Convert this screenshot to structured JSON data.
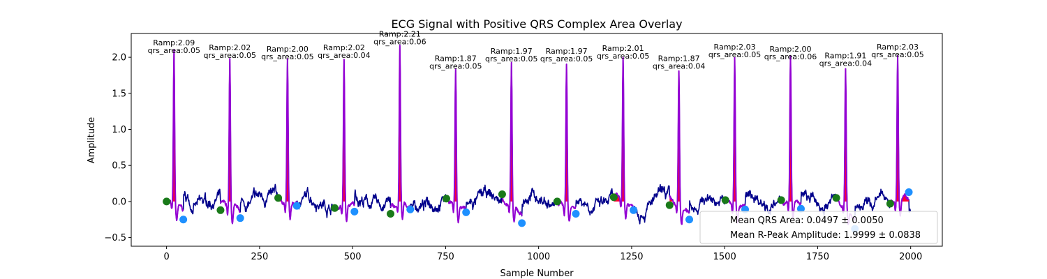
{
  "chart_data": {
    "type": "line",
    "title": "ECG Signal with Positive QRS Complex Area Overlay",
    "xlabel": "Sample Number",
    "ylabel": "Amplitude",
    "xlim": [
      -95,
      2085
    ],
    "ylim": [
      -0.62,
      2.33
    ],
    "grid": false,
    "legend_position": "lower-right",
    "x_ticks": [
      0,
      250,
      500,
      750,
      1000,
      1250,
      1500,
      1750,
      2000
    ],
    "x_tick_labels": [
      "0",
      "250",
      "500",
      "750",
      "1000",
      "1250",
      "1500",
      "1750",
      "2000"
    ],
    "y_ticks": [
      -0.5,
      0.0,
      0.5,
      1.0,
      1.5,
      2.0
    ],
    "y_tick_labels": [
      "−0.5",
      "0.0",
      "0.5",
      "1.0",
      "1.5",
      "2.0"
    ],
    "colors": {
      "ecg_line": "#00008b",
      "qrs_segment": "#9400d3",
      "qrs_area_fill": "#ff0033",
      "onset_marker": "#1a7a1a",
      "offset_marker": "#1e90ff"
    },
    "r_peaks": [
      {
        "x": 20,
        "amp": 2.09,
        "ramp_label": "Ramp:2.09",
        "area_label": "qrs_area:0.05"
      },
      {
        "x": 170,
        "amp": 2.02,
        "ramp_label": "Ramp:2.02",
        "area_label": "qrs_area:0.05"
      },
      {
        "x": 325,
        "amp": 2.0,
        "ramp_label": "Ramp:2.00",
        "area_label": "qrs_area:0.05"
      },
      {
        "x": 477,
        "amp": 2.02,
        "ramp_label": "Ramp:2.02",
        "area_label": "qrs_area:0.04"
      },
      {
        "x": 627,
        "amp": 2.21,
        "ramp_label": "Ramp:2.21",
        "area_label": "qrs_area:0.06"
      },
      {
        "x": 777,
        "amp": 1.87,
        "ramp_label": "Ramp:1.87",
        "area_label": "qrs_area:0.05"
      },
      {
        "x": 927,
        "amp": 1.97,
        "ramp_label": "Ramp:1.97",
        "area_label": "qrs_area:0.05"
      },
      {
        "x": 1075,
        "amp": 1.97,
        "ramp_label": "Ramp:1.97",
        "area_label": "qrs_area:0.05"
      },
      {
        "x": 1227,
        "amp": 2.01,
        "ramp_label": "Ramp:2.01",
        "area_label": "qrs_area:0.05"
      },
      {
        "x": 1377,
        "amp": 1.87,
        "ramp_label": "Ramp:1.87",
        "area_label": "qrs_area:0.04"
      },
      {
        "x": 1527,
        "amp": 2.03,
        "ramp_label": "Ramp:2.03",
        "area_label": "qrs_area:0.05"
      },
      {
        "x": 1677,
        "amp": 2.0,
        "ramp_label": "Ramp:2.00",
        "area_label": "qrs_area:0.06"
      },
      {
        "x": 1825,
        "amp": 1.91,
        "ramp_label": "Ramp:1.91",
        "area_label": "qrs_area:0.04"
      },
      {
        "x": 1965,
        "amp": 2.03,
        "ramp_label": "Ramp:2.03",
        "area_label": "qrs_area:0.05"
      }
    ],
    "qrs_onsets": [
      {
        "x": 0,
        "y": 0.0
      },
      {
        "x": 145,
        "y": -0.12
      },
      {
        "x": 300,
        "y": 0.05
      },
      {
        "x": 452,
        "y": -0.09
      },
      {
        "x": 602,
        "y": -0.17
      },
      {
        "x": 752,
        "y": 0.04
      },
      {
        "x": 902,
        "y": 0.1
      },
      {
        "x": 1050,
        "y": 0.0
      },
      {
        "x": 1202,
        "y": 0.06
      },
      {
        "x": 1352,
        "y": -0.05
      },
      {
        "x": 1502,
        "y": 0.02
      },
      {
        "x": 1652,
        "y": 0.02
      },
      {
        "x": 1800,
        "y": 0.05
      },
      {
        "x": 1945,
        "y": -0.03
      }
    ],
    "qrs_offsets": [
      {
        "x": 45,
        "y": -0.25
      },
      {
        "x": 198,
        "y": -0.23
      },
      {
        "x": 350,
        "y": -0.06
      },
      {
        "x": 505,
        "y": -0.14
      },
      {
        "x": 655,
        "y": -0.11
      },
      {
        "x": 805,
        "y": -0.15
      },
      {
        "x": 955,
        "y": -0.3
      },
      {
        "x": 1100,
        "y": -0.17
      },
      {
        "x": 1255,
        "y": -0.12
      },
      {
        "x": 1405,
        "y": -0.25
      },
      {
        "x": 1555,
        "y": -0.11
      },
      {
        "x": 1705,
        "y": -0.1
      },
      {
        "x": 1850,
        "y": -0.38
      },
      {
        "x": 1995,
        "y": 0.13
      }
    ],
    "legend_entries": [
      "Mean QRS Area: 0.0497 ± 0.0050",
      "Mean R-Peak Amplitude: 1.9999 ± 0.0838"
    ]
  }
}
